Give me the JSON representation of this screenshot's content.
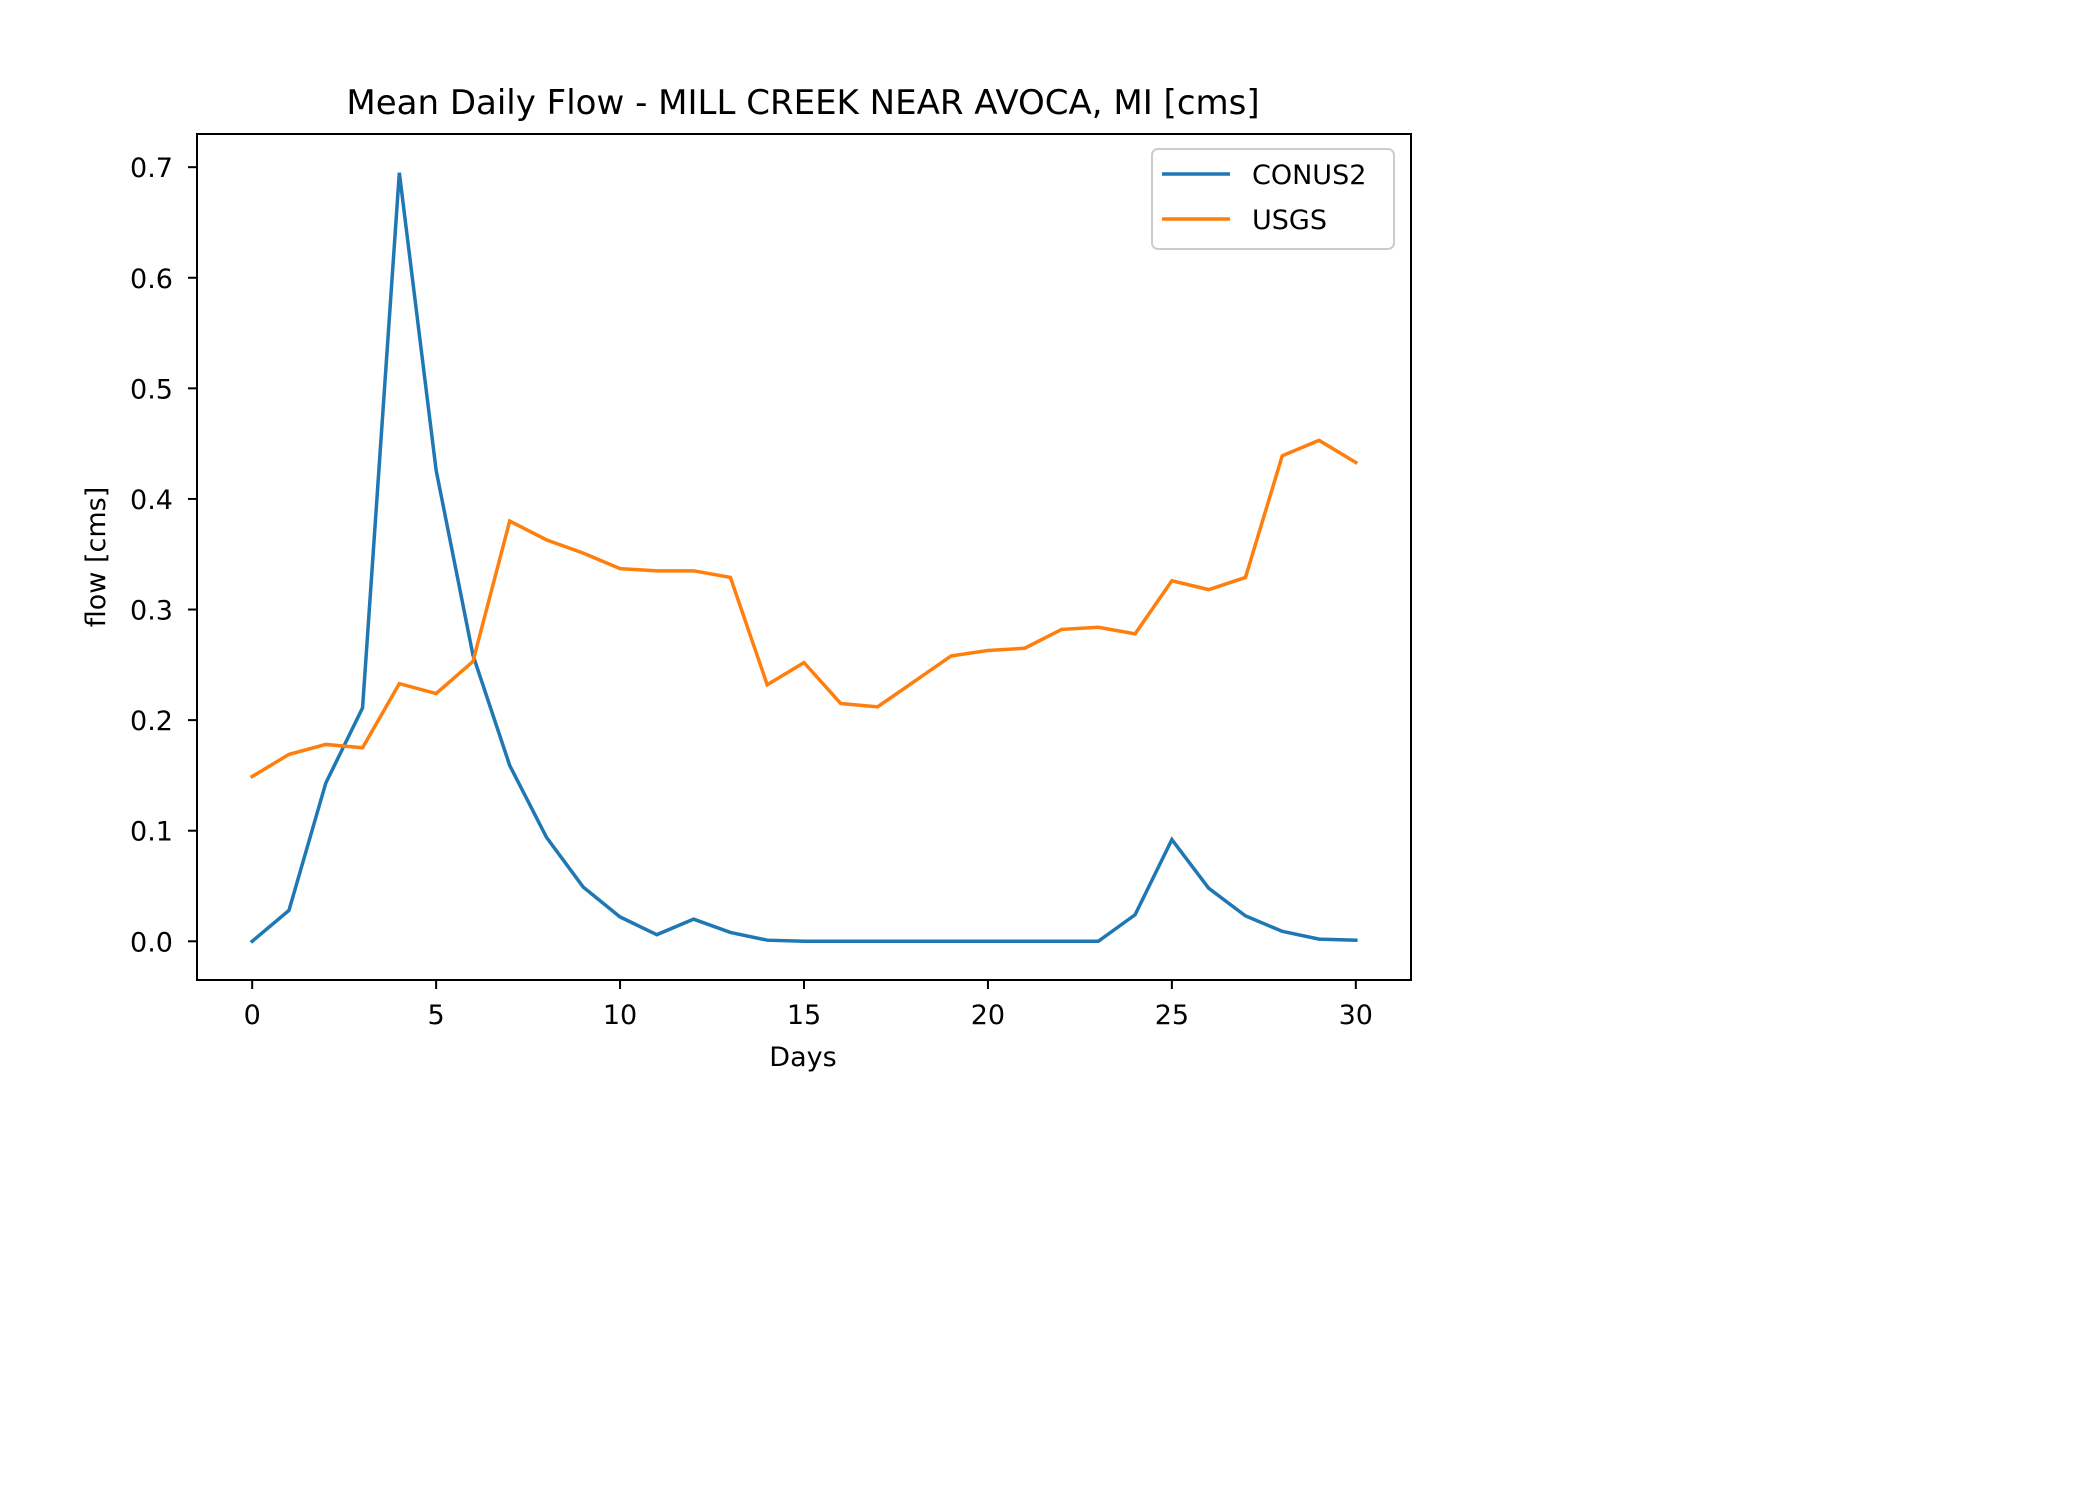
{
  "chart_data": {
    "type": "line",
    "title": "Mean Daily Flow - MILL CREEK NEAR AVOCA, MI [cms]",
    "xlabel": "Days",
    "ylabel": "flow [cms]",
    "xlim": [
      -1.5,
      31.5
    ],
    "ylim": [
      -0.035,
      0.73
    ],
    "xticks": [
      0,
      5,
      10,
      15,
      20,
      25,
      30
    ],
    "xtick_labels": [
      "0",
      "5",
      "10",
      "15",
      "20",
      "25",
      "30"
    ],
    "yticks": [
      0.0,
      0.1,
      0.2,
      0.3,
      0.4,
      0.5,
      0.6,
      0.7
    ],
    "ytick_labels": [
      "0.0",
      "0.1",
      "0.2",
      "0.3",
      "0.4",
      "0.5",
      "0.6",
      "0.7"
    ],
    "grid": false,
    "legend_position": "top-right",
    "x": [
      0,
      1,
      2,
      3,
      4,
      5,
      6,
      7,
      8,
      9,
      10,
      11,
      12,
      13,
      14,
      15,
      16,
      17,
      18,
      19,
      20,
      21,
      22,
      23,
      24,
      25,
      26,
      27,
      28,
      29,
      30
    ],
    "series": [
      {
        "name": "CONUS2",
        "color": "#1f77b4",
        "values": [
          0.0,
          0.028,
          0.143,
          0.211,
          0.695,
          0.426,
          0.259,
          0.159,
          0.094,
          0.049,
          0.022,
          0.006,
          0.02,
          0.008,
          0.001,
          0.0,
          0.0,
          0.0,
          0.0,
          0.0,
          0.0,
          0.0,
          0.0,
          0.0,
          0.024,
          0.092,
          0.048,
          0.023,
          0.009,
          0.002,
          0.001
        ]
      },
      {
        "name": "USGS",
        "color": "#ff7f0e",
        "values": [
          0.149,
          0.169,
          0.178,
          0.175,
          0.233,
          0.224,
          0.253,
          0.38,
          0.363,
          0.351,
          0.337,
          0.335,
          0.335,
          0.329,
          0.232,
          0.252,
          0.215,
          0.212,
          0.235,
          0.258,
          0.263,
          0.265,
          0.282,
          0.284,
          0.278,
          0.326,
          0.318,
          0.329,
          0.439,
          0.453,
          0.433
        ]
      }
    ]
  }
}
